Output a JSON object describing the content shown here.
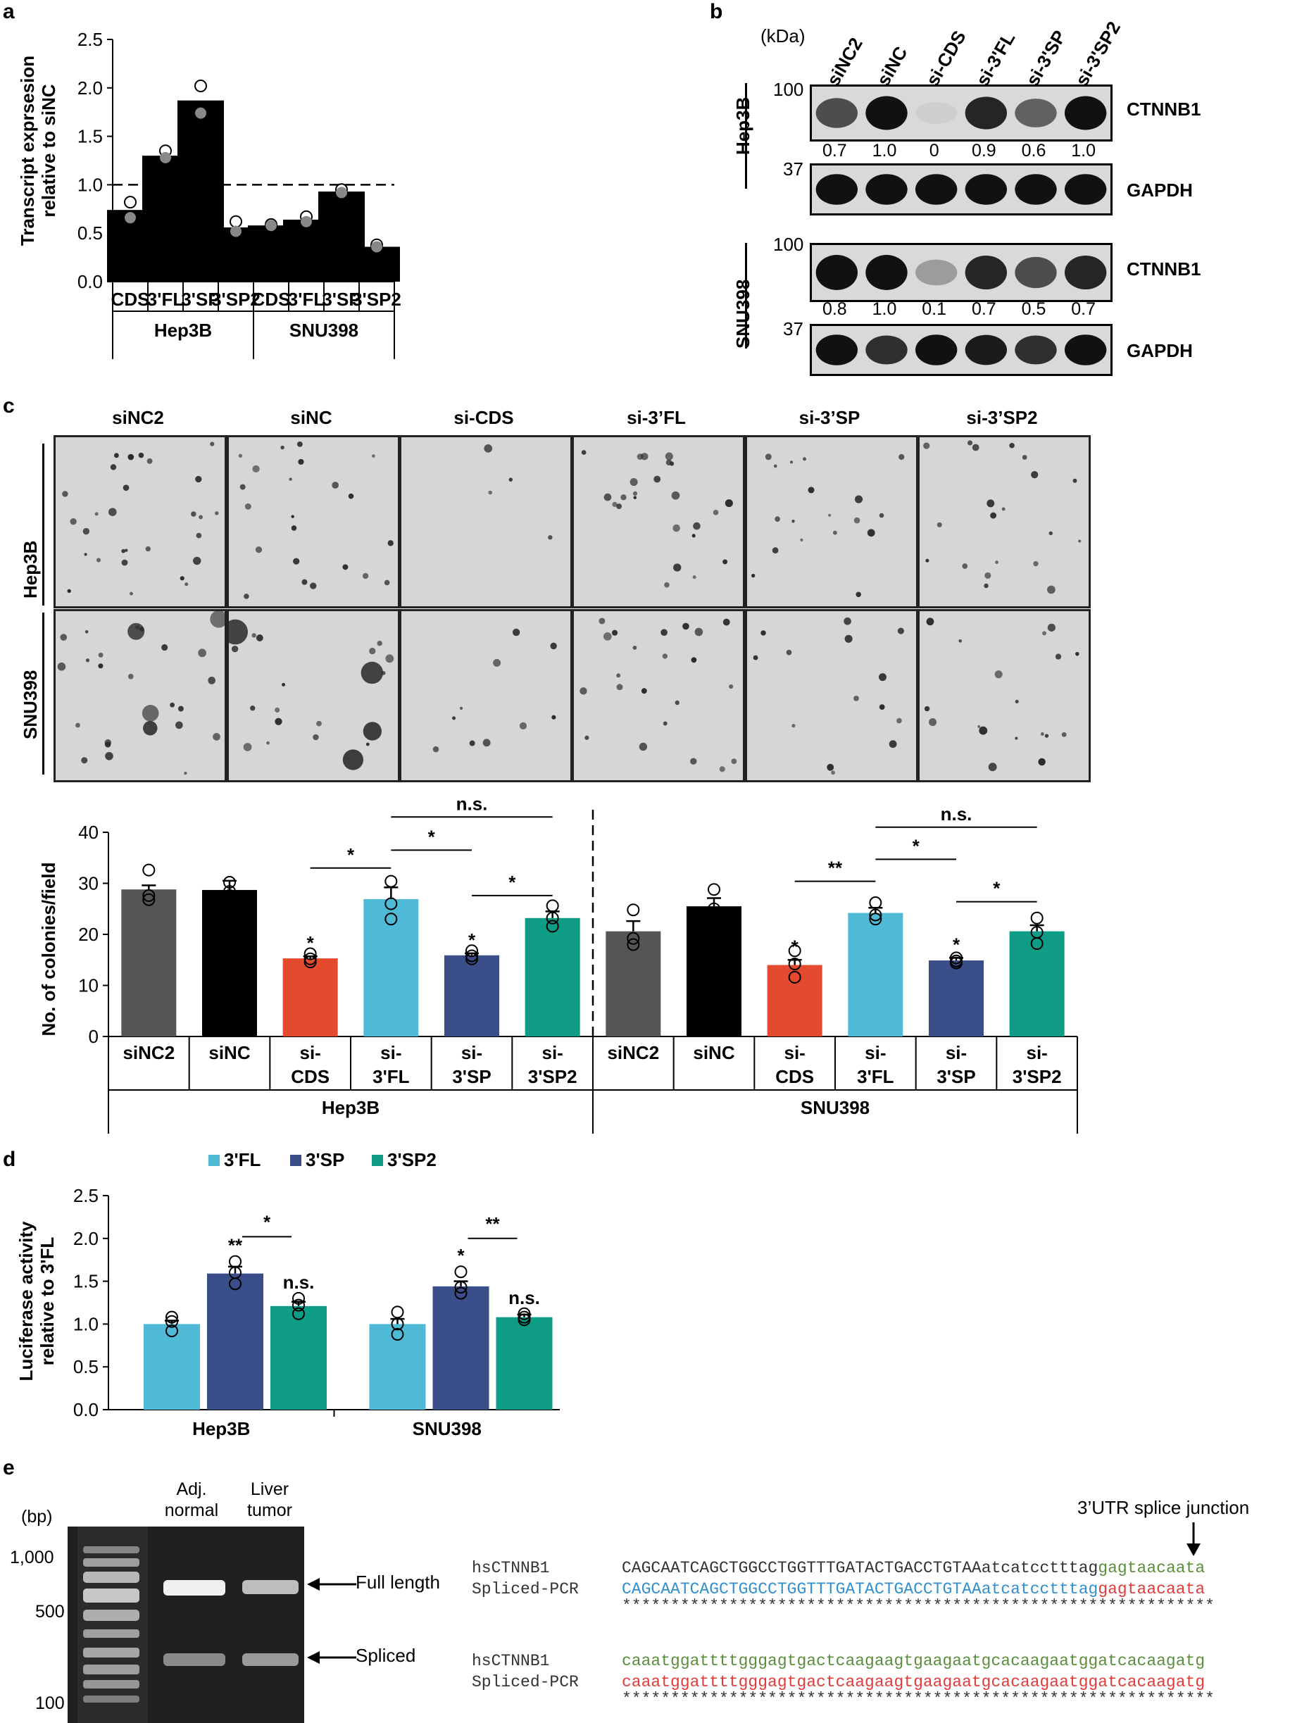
{
  "panels": {
    "a": "a",
    "b": "b",
    "c": "c",
    "d": "d",
    "e": "e"
  },
  "colors": {
    "black": "#000000",
    "gray": "#555555",
    "red": "#e44a2e",
    "lightblue": "#4fbad6",
    "navy": "#3a4f8a",
    "teal": "#0f9c86"
  },
  "panel_a": {
    "chart_data": {
      "type": "bar",
      "ylabel": "Transcript exprsesion relative to siNC",
      "ylabel_lines": [
        "Transcript exprsesion",
        "relative to siNC"
      ],
      "ylim": [
        0,
        2.5
      ],
      "yticks": [
        "0.0",
        "0.5",
        "1.0",
        "1.5",
        "2.0",
        "2.5"
      ],
      "categories": [
        "CDS",
        "3'FL",
        "3'SP",
        "3'SP2",
        "CDS",
        "3'FL",
        "3'SP",
        "3'SP2"
      ],
      "groups": [
        "Hep3B",
        "SNU398"
      ],
      "values": [
        0.74,
        1.3,
        1.87,
        0.56,
        0.58,
        0.64,
        0.93,
        0.36
      ],
      "points": [
        [
          0.82,
          0.66
        ],
        [
          1.35,
          1.28
        ],
        [
          2.02,
          1.74
        ],
        [
          0.62,
          0.52
        ],
        [
          0.59,
          0.58
        ],
        [
          0.67,
          0.62
        ],
        [
          0.95,
          0.92
        ],
        [
          0.38,
          0.36
        ]
      ],
      "reference_line": 1.0
    }
  },
  "panel_b": {
    "kda": "(kDa)",
    "lanes": [
      "siNC2",
      "siNC",
      "si-CDS",
      "si-3'FL",
      "si-3'SP",
      "si-3'SP2"
    ],
    "hep3b": {
      "label": "Hep3B",
      "ctnnb1": "CTNNB1",
      "gapdh": "GAPDH",
      "marker_top": "100",
      "marker_bottom": "37",
      "values": [
        "0.7",
        "1.0",
        "0",
        "0.9",
        "0.6",
        "1.0"
      ]
    },
    "snu398": {
      "label": "SNU398",
      "ctnnb1": "CTNNB1",
      "gapdh": "GAPDH",
      "marker_top": "100",
      "marker_bottom": "37",
      "values": [
        "0.8",
        "1.0",
        "0.1",
        "0.7",
        "0.5",
        "0.7"
      ]
    }
  },
  "panel_c": {
    "columns": [
      "siNC2",
      "siNC",
      "si-CDS",
      "si-3’FL",
      "si-3’SP",
      "si-3’SP2"
    ],
    "rows": [
      "Hep3B",
      "SNU398"
    ],
    "chart_data": {
      "type": "bar",
      "ylabel": "No. of colonies/field",
      "ylim": [
        0,
        40
      ],
      "yticks": [
        "0",
        "10",
        "20",
        "30",
        "40"
      ],
      "categories_top": [
        "siNC2",
        "siNC",
        "si-",
        "si-",
        "si-",
        "si-",
        "siNC2",
        "siNC",
        "si-",
        "si-",
        "si-",
        "si-"
      ],
      "categories_bottom": [
        "",
        "",
        "CDS",
        "3'FL",
        "3'SP",
        "3'SP2",
        "",
        "",
        "CDS",
        "3'FL",
        "3'SP",
        "3'SP2"
      ],
      "groups": [
        "Hep3B",
        "SNU398"
      ],
      "values": [
        28.8,
        28.7,
        15.3,
        26.9,
        15.9,
        23.2,
        20.6,
        25.5,
        14.0,
        24.2,
        14.9,
        20.6
      ],
      "errors": [
        0.8,
        1.8,
        0.4,
        2.3,
        0.4,
        1.3,
        2.0,
        1.6,
        1.0,
        1.0,
        0.5,
        1.2
      ],
      "points": [
        [
          32.6,
          27.6,
          26.8
        ],
        [
          30.2,
          28.4,
          27.6
        ],
        [
          16.2,
          15.2,
          14.6
        ],
        [
          30.4,
          26.0,
          23.0
        ],
        [
          16.8,
          15.8,
          15.2
        ],
        [
          25.6,
          23.2,
          21.6
        ],
        [
          24.8,
          19.2,
          18.0
        ],
        [
          28.8,
          25.0,
          22.6
        ],
        [
          16.8,
          14.2,
          11.6
        ],
        [
          26.2,
          23.8,
          23.0
        ],
        [
          15.4,
          14.8,
          14.4
        ],
        [
          23.2,
          20.4,
          18.2
        ]
      ],
      "star_marks": [
        "",
        "",
        "*",
        "",
        "*",
        "",
        "",
        "",
        "*",
        "",
        "*",
        ""
      ],
      "brackets": [
        {
          "from": 2,
          "to": 3,
          "label": "*",
          "y": 33
        },
        {
          "from": 3,
          "to": 4,
          "label": "*",
          "y": 36.5
        },
        {
          "from": 4,
          "to": 5,
          "label": "*",
          "y": 27.6
        },
        {
          "from": 3,
          "to": 5,
          "label": "n.s.",
          "y": 43
        },
        {
          "from": 8,
          "to": 9,
          "label": "**",
          "y": 30.4
        },
        {
          "from": 9,
          "to": 10,
          "label": "*",
          "y": 34.7
        },
        {
          "from": 10,
          "to": 11,
          "label": "*",
          "y": 26.4
        },
        {
          "from": 9,
          "to": 11,
          "label": "n.s.",
          "y": 41
        }
      ]
    }
  },
  "panel_d": {
    "legend": [
      "3'FL",
      "3'SP",
      "3'SP2"
    ],
    "chart_data": {
      "type": "bar",
      "ylabel": "Luciferase activity relative to 3'FL",
      "ylabel_lines": [
        "Luciferase activity",
        "relative to 3'FL"
      ],
      "ylim": [
        0,
        2.5
      ],
      "yticks": [
        "0.0",
        "0.5",
        "1.0",
        "1.5",
        "2.0",
        "2.5"
      ],
      "groups": [
        "Hep3B",
        "SNU398"
      ],
      "series": [
        {
          "name": "3'FL",
          "values": [
            1.0,
            1.0
          ]
        },
        {
          "name": "3'SP",
          "values": [
            1.59,
            1.44
          ]
        },
        {
          "name": "3'SP2",
          "values": [
            1.21,
            1.08
          ]
        }
      ],
      "errors": [
        [
          0.04,
          0.06
        ],
        [
          0.08,
          0.06
        ],
        [
          0.05,
          0.03
        ]
      ],
      "points": [
        [
          [
            1.08,
            1.03,
            0.92
          ],
          [
            1.14,
            1.0,
            0.88
          ]
        ],
        [
          [
            1.73,
            1.6,
            1.47
          ],
          [
            1.61,
            1.43,
            1.36
          ]
        ],
        [
          [
            1.3,
            1.22,
            1.12
          ],
          [
            1.12,
            1.08,
            1.05
          ]
        ]
      ],
      "marks": [
        [
          "",
          ""
        ],
        [
          "**",
          "*"
        ],
        [
          "n.s.",
          "n.s."
        ]
      ],
      "brackets": [
        {
          "label": "*"
        },
        {
          "label": "**"
        }
      ]
    }
  },
  "panel_e": {
    "bp": "(bp)",
    "markers": [
      "1,000",
      "500",
      "100"
    ],
    "lanes": [
      "Adj.\nnormal",
      "Liver\ntumor"
    ],
    "lane1": [
      "Adj.",
      "normal"
    ],
    "lane2": [
      "Liver",
      "tumor"
    ],
    "full_length": "Full length",
    "spliced": "Spliced",
    "junction": "3’UTR splice junction",
    "block1": {
      "name1": "hsCTNNB1",
      "seq1_upper": "CAGCAATCAGCTGGCCTGGTTTGATACTGACCTGTAA",
      "seq1_lower": "atcatcctttag",
      "seq1_tail": "gagtaacaata",
      "name2": "Spliced-PCR",
      "seq2_upper": "CAGCAATCAGCTGGCCTGGTTTGATACTGACCTGTAA",
      "seq2_lower": "atcatcctttag",
      "seq2_tail": "gagtaacaata",
      "stars": "*************************************************************"
    },
    "block2": {
      "name1": "hsCTNNB1",
      "seq1": "caaatggattttgggagtgactcaagaagtgaagaatgcacaagaatggatcacaagatg",
      "name2": "Spliced-PCR",
      "seq2": "caaatggattttgggagtgactcaagaagtgaagaatgcacaagaatggatcacaagatg",
      "stars": "*************************************************************"
    }
  }
}
